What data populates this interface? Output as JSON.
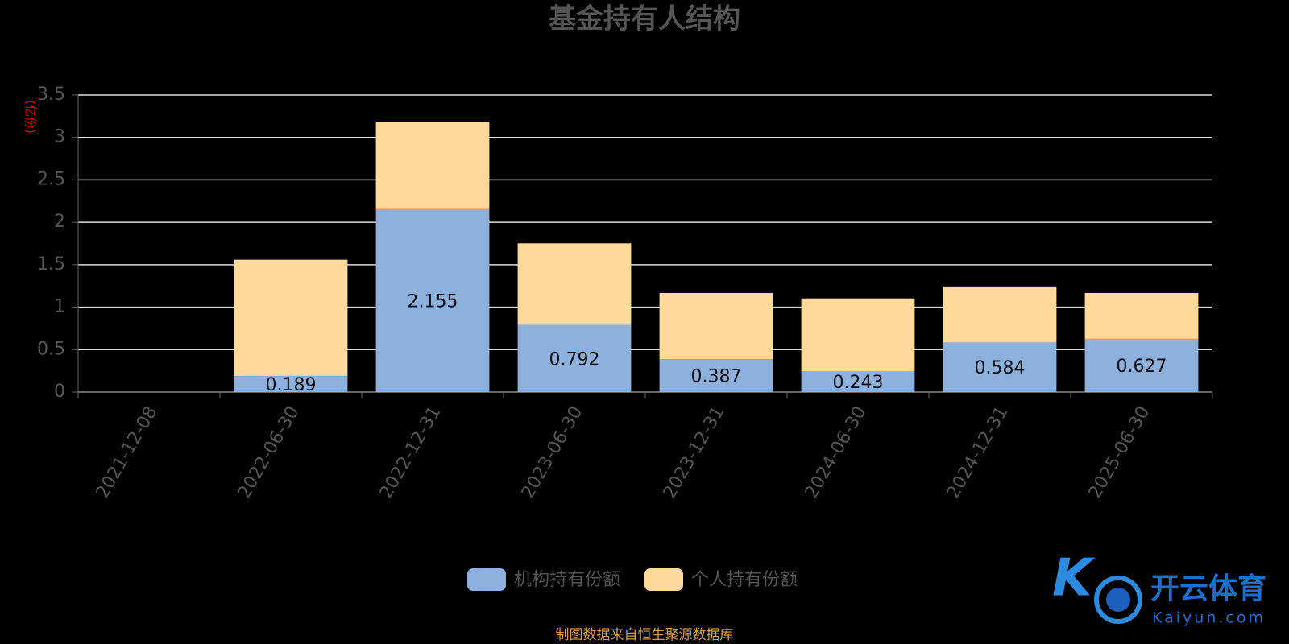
{
  "chart_data": {
    "type": "stacked_bar",
    "title": "基金持有人结构",
    "y_label": "(亿份)",
    "categories": [
      "2021-12-08",
      "2022-06-30",
      "2022-12-31",
      "2023-06-30",
      "2023-12-31",
      "2024-06-30",
      "2024-12-31",
      "2025-06-30"
    ],
    "series": [
      {
        "name": "机构持有份额",
        "color": "#8eb0dd",
        "values": [
          null,
          0.189,
          2.155,
          0.792,
          0.387,
          0.243,
          0.584,
          0.627
        ]
      },
      {
        "name": "个人持有份额",
        "color": "#ffd999",
        "values": [
          null,
          1.37,
          1.03,
          0.96,
          0.78,
          0.86,
          0.66,
          0.54
        ]
      }
    ],
    "ylim": [
      0,
      3.5
    ],
    "yticks": [
      0,
      0.5,
      1,
      1.5,
      2,
      2.5,
      3,
      3.5
    ],
    "grid": true,
    "source": "制图数据来自恒生聚源数据库"
  },
  "watermark": {
    "brand": "开云体育",
    "site": "Kaiyun.com"
  }
}
